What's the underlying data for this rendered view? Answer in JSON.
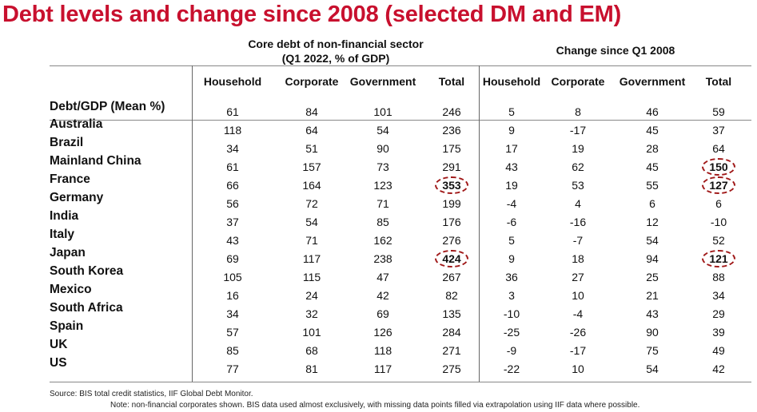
{
  "title": "Debt levels and change since 2008 (selected DM and EM)",
  "group_headers": {
    "core_line1": "Core debt of non-financial sector",
    "core_line2": "(Q1 2022, % of GDP)",
    "change": "Change since Q1 2008"
  },
  "columns": [
    "Household",
    "Corporate",
    "Government",
    "Total",
    "Household",
    "Corporate",
    "Government",
    "Total"
  ],
  "rows": [
    {
      "label": "Debt/GDP (Mean %)",
      "values": [
        "61",
        "84",
        "101",
        "246",
        "5",
        "8",
        "46",
        "59"
      ]
    },
    {
      "label": "Australia",
      "values": [
        "118",
        "64",
        "54",
        "236",
        "9",
        "-17",
        "45",
        "37"
      ]
    },
    {
      "label": "Brazil",
      "values": [
        "34",
        "51",
        "90",
        "175",
        "17",
        "19",
        "28",
        "64"
      ]
    },
    {
      "label": "Mainland China",
      "values": [
        "61",
        "157",
        "73",
        "291",
        "43",
        "62",
        "45",
        "150"
      ]
    },
    {
      "label": "France",
      "values": [
        "66",
        "164",
        "123",
        "353",
        "19",
        "53",
        "55",
        "127"
      ]
    },
    {
      "label": "Germany",
      "values": [
        "56",
        "72",
        "71",
        "199",
        "-4",
        "4",
        "6",
        "6"
      ]
    },
    {
      "label": "India",
      "values": [
        "37",
        "54",
        "85",
        "176",
        "-6",
        "-16",
        "12",
        "-10"
      ]
    },
    {
      "label": "Italy",
      "values": [
        "43",
        "71",
        "162",
        "276",
        "5",
        "-7",
        "54",
        "52"
      ]
    },
    {
      "label": "Japan",
      "values": [
        "69",
        "117",
        "238",
        "424",
        "9",
        "18",
        "94",
        "121"
      ]
    },
    {
      "label": "South Korea",
      "values": [
        "105",
        "115",
        "47",
        "267",
        "36",
        "27",
        "25",
        "88"
      ]
    },
    {
      "label": "Mexico",
      "values": [
        "16",
        "24",
        "42",
        "82",
        "3",
        "10",
        "21",
        "34"
      ]
    },
    {
      "label": "South Africa",
      "values": [
        "34",
        "32",
        "69",
        "135",
        "-10",
        "-4",
        "43",
        "29"
      ]
    },
    {
      "label": "Spain",
      "values": [
        "57",
        "101",
        "126",
        "284",
        "-25",
        "-26",
        "90",
        "39"
      ]
    },
    {
      "label": "UK",
      "values": [
        "85",
        "68",
        "118",
        "271",
        "-9",
        "-17",
        "75",
        "49"
      ]
    },
    {
      "label": "US",
      "values": [
        "77",
        "81",
        "117",
        "275",
        "-22",
        "10",
        "54",
        "42"
      ]
    }
  ],
  "highlighted_cells": [
    "3-7",
    "4-3",
    "4-7",
    "8-3",
    "8-7"
  ],
  "highlight_color": "#a01818",
  "title_color": "#c8102e",
  "source": "Source: BIS total credit statistics, IIF Global Debt Monitor.",
  "note": "Note: non-financial corporates shown. BIS data used almost exclusively, with missing data points filled via extrapolation using IIF data where possible."
}
